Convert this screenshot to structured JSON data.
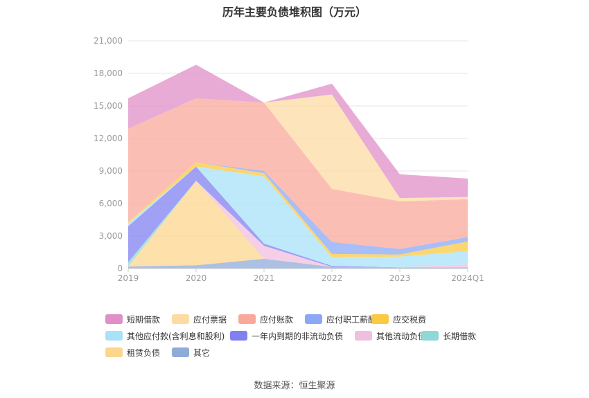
{
  "chart_data": {
    "type": "area",
    "stacked": true,
    "title": "历年主要负债堆积图（万元）",
    "categories": [
      "2019",
      "2020",
      "2021",
      "2022",
      "2023",
      "2024Q1"
    ],
    "ylim": [
      0,
      21000
    ],
    "yticks": [
      "0",
      "3,000",
      "6,000",
      "9,000",
      "12,000",
      "15,000",
      "18,000",
      "21,000"
    ],
    "grid": true,
    "legend_position": "bottom",
    "series": [
      {
        "name": "其它",
        "color": "#8fabd8",
        "values": [
          200,
          300,
          900,
          150,
          100,
          100
        ]
      },
      {
        "name": "租赁负债",
        "color": "#fcd58e",
        "values": [
          0,
          7800,
          0,
          0,
          0,
          0
        ]
      },
      {
        "name": "长期借款",
        "color": "#8ed8d6",
        "values": [
          400,
          0,
          0,
          0,
          0,
          0
        ]
      },
      {
        "name": "其他流动负债",
        "color": "#f0bfdd",
        "values": [
          0,
          0,
          1200,
          0,
          0,
          300
        ]
      },
      {
        "name": "一年内到期的非流动负债",
        "color": "#8080f0",
        "values": [
          3300,
          1300,
          200,
          100,
          0,
          0
        ]
      },
      {
        "name": "其他应付款(含利息和股利)",
        "color": "#a8e2f8",
        "values": [
          300,
          0,
          6200,
          800,
          1000,
          1200
        ]
      },
      {
        "name": "应交税费",
        "color": "#fbc942",
        "values": [
          100,
          400,
          300,
          300,
          200,
          900
        ]
      },
      {
        "name": "应付职工薪酬",
        "color": "#8aa8f5",
        "values": [
          0,
          0,
          200,
          1100,
          500,
          400
        ]
      },
      {
        "name": "应付账款",
        "color": "#f9a89b",
        "values": [
          8600,
          5900,
          6300,
          4900,
          4400,
          3500
        ]
      },
      {
        "name": "应付票据",
        "color": "#fddba3",
        "values": [
          0,
          0,
          0,
          8700,
          300,
          200
        ]
      },
      {
        "name": "短期借款",
        "color": "#e08fc8",
        "values": [
          2800,
          3100,
          0,
          1000,
          2200,
          1700
        ]
      }
    ]
  },
  "legend_order": [
    "短期借款",
    "应付票据",
    "应付账款",
    "应付职工薪酬",
    "应交税费",
    "其他应付款(含利息和股利)",
    "一年内到期的非流动负债",
    "其他流动负债",
    "长期借款",
    "租赁负债",
    "其它"
  ],
  "source_note": "数据来源：恒生聚源"
}
